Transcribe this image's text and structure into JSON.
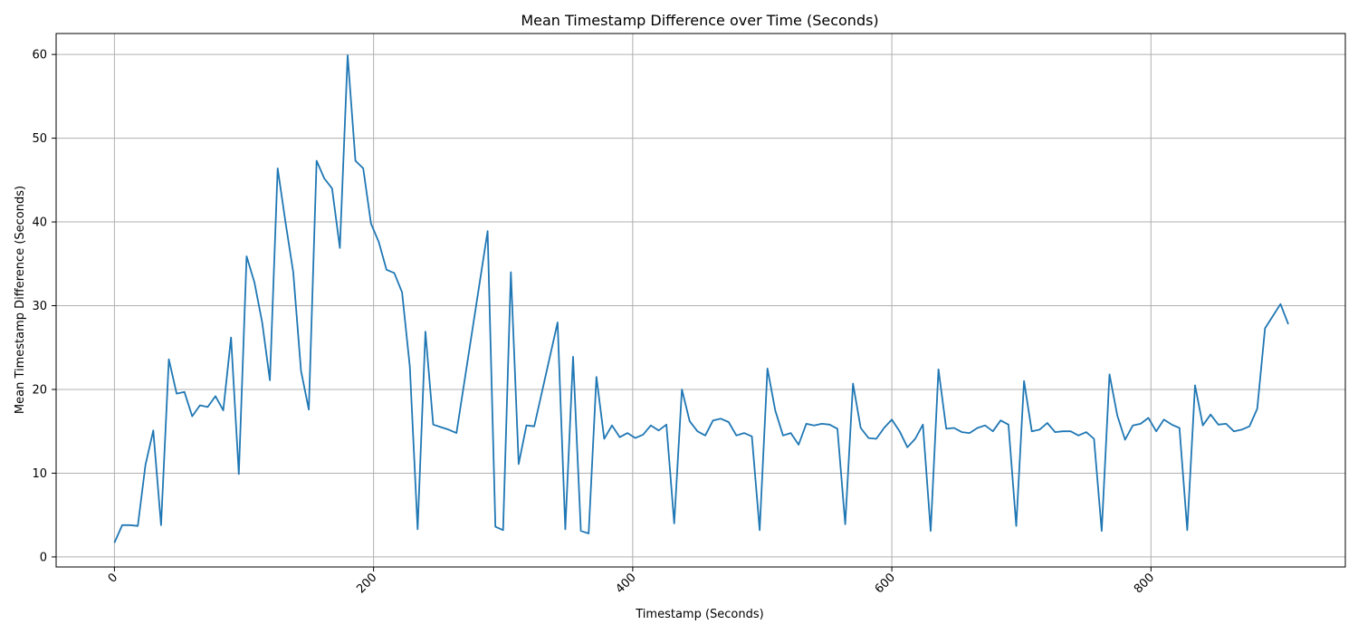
{
  "chart_data": {
    "type": "line",
    "title": "Mean Timestamp Difference over Time (Seconds)",
    "xlabel": "Timestamp (Seconds)",
    "ylabel": "Mean Timestamp Difference (Seconds)",
    "xlim": [
      -45,
      950
    ],
    "ylim": [
      -1.2,
      62.5
    ],
    "xticks": [
      0,
      200,
      400,
      600,
      800
    ],
    "yticks": [
      0,
      10,
      20,
      30,
      40,
      50,
      60
    ],
    "xtick_rotation": 45,
    "grid": true,
    "series_color": "#1f77b4",
    "x": [
      0,
      6,
      12,
      18,
      24,
      30,
      36,
      42,
      48,
      54,
      60,
      66,
      72,
      78,
      84,
      90,
      96,
      102,
      108,
      114,
      120,
      126,
      132,
      138,
      144,
      150,
      156,
      162,
      168,
      174,
      180,
      186,
      192,
      198,
      204,
      210,
      216,
      222,
      228,
      234,
      240,
      246,
      252,
      258,
      264,
      288,
      294,
      300,
      306,
      312,
      318,
      324,
      342,
      348,
      354,
      360,
      366,
      372,
      378,
      384,
      390,
      396,
      402,
      408,
      414,
      420,
      426,
      432,
      438,
      444,
      450,
      456,
      462,
      468,
      474,
      480,
      486,
      492,
      498,
      504,
      510,
      516,
      522,
      528,
      534,
      540,
      546,
      552,
      558,
      564,
      570,
      576,
      582,
      588,
      594,
      600,
      606,
      612,
      618,
      624,
      630,
      636,
      642,
      648,
      654,
      660,
      666,
      672,
      678,
      684,
      690,
      696,
      702,
      708,
      714,
      720,
      726,
      732,
      738,
      744,
      750,
      756,
      762,
      768,
      774,
      780,
      786,
      792,
      798,
      804,
      810,
      816,
      822,
      828,
      834,
      840,
      846,
      852,
      858,
      864,
      870,
      876,
      882,
      888,
      900,
      906
    ],
    "y": [
      1.7,
      3.8,
      3.8,
      3.7,
      11.0,
      15.1,
      3.8,
      23.6,
      19.5,
      19.7,
      16.8,
      18.1,
      17.9,
      19.2,
      17.5,
      26.2,
      9.9,
      35.9,
      32.8,
      28.0,
      21.1,
      46.4,
      40.0,
      34.0,
      22.2,
      17.6,
      47.3,
      45.2,
      44.0,
      36.9,
      59.9,
      47.3,
      46.4,
      39.8,
      37.6,
      34.3,
      33.9,
      31.6,
      22.7,
      3.3,
      26.9,
      15.8,
      15.5,
      15.2,
      14.8,
      38.9,
      3.6,
      3.2,
      34.0,
      11.1,
      15.7,
      15.6,
      28.0,
      3.3,
      23.9,
      3.1,
      2.8,
      21.5,
      14.1,
      15.7,
      14.3,
      14.8,
      14.2,
      14.6,
      15.7,
      15.1,
      15.8,
      4.0,
      20.0,
      16.2,
      15.0,
      14.5,
      16.3,
      16.5,
      16.1,
      14.5,
      14.8,
      14.4,
      3.2,
      22.5,
      17.5,
      14.5,
      14.8,
      13.4,
      15.9,
      15.7,
      15.9,
      15.8,
      15.3,
      3.9,
      20.7,
      15.4,
      14.2,
      14.1,
      15.4,
      16.4,
      15.0,
      13.1,
      14.1,
      15.8,
      3.1,
      22.4,
      15.3,
      15.4,
      14.9,
      14.8,
      15.4,
      15.7,
      15.0,
      16.3,
      15.8,
      3.7,
      21.0,
      15.0,
      15.2,
      16.0,
      14.9,
      15.0,
      15.0,
      14.5,
      14.9,
      14.1,
      3.1,
      21.8,
      16.9,
      14.0,
      15.7,
      15.9,
      16.6,
      15.0,
      16.4,
      15.8,
      15.4,
      3.2,
      20.5,
      15.7,
      17.0,
      15.8,
      15.9,
      15.0,
      15.2,
      15.6,
      17.7,
      27.3,
      30.2,
      27.8
    ]
  }
}
